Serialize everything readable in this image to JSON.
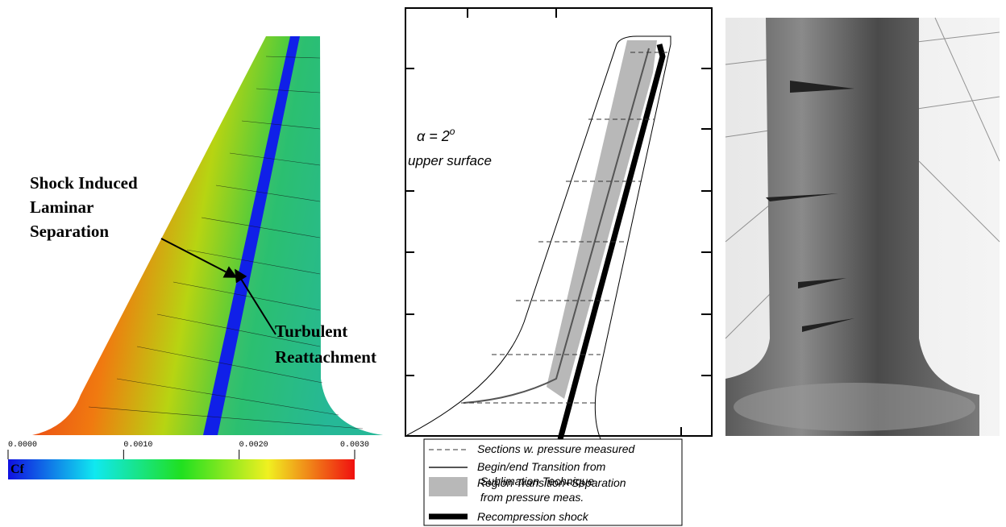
{
  "cfd_panel": {
    "annotation_separation": [
      "Shock Induced",
      "Laminar",
      "Separation"
    ],
    "annotation_reattachment": [
      "Turbulent",
      "Reattachment"
    ],
    "colorbar": {
      "label": "Cf",
      "ticks": [
        {
          "value": 0,
          "label": "0.0000"
        },
        {
          "value": 0.001,
          "label": "0.0010"
        },
        {
          "value": 0.002,
          "label": "0.0020"
        },
        {
          "value": 0.003,
          "label": "0.0030"
        }
      ]
    }
  },
  "sketch_panel": {
    "condition": {
      "main": "α = 2",
      "sup": "o"
    },
    "surface": "upper surface",
    "legend": [
      {
        "lines": [
          "Sections w. pressure measured"
        ]
      },
      {
        "lines": [
          "Begin/end Transition from",
          " Sublimation Technique"
        ]
      },
      {
        "lines": [
          "Region Transition+Separation",
          " from pressure meas."
        ]
      },
      {
        "lines": [
          "Recompression shock"
        ]
      }
    ]
  }
}
